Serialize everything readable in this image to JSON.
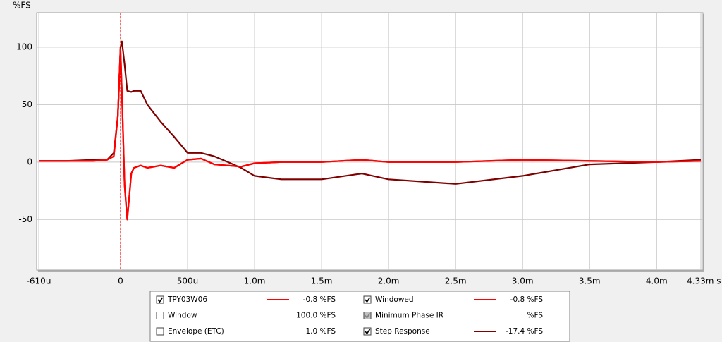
{
  "chart_data": {
    "type": "line",
    "y_axis_label": "%FS",
    "x": [
      -0.61,
      -0.4,
      -0.2,
      -0.1,
      -0.05,
      -0.02,
      0,
      0.01,
      0.03,
      0.05,
      0.08,
      0.1,
      0.15,
      0.2,
      0.3,
      0.4,
      0.5,
      0.6,
      0.7,
      0.8,
      0.9,
      1.0,
      1.2,
      1.5,
      1.8,
      2.0,
      2.5,
      3.0,
      3.5,
      4.0,
      4.33
    ],
    "series": [
      {
        "name": "TPY03W06",
        "color": "#ff0000",
        "checked": true,
        "readout": "-0.8 %FS",
        "values": [
          1,
          1,
          1,
          2,
          5,
          40,
          98,
          60,
          -20,
          -50,
          -10,
          -5,
          -3,
          -5,
          -3,
          -5,
          2,
          3,
          -2,
          -3,
          -4,
          -1,
          0,
          0,
          2,
          0,
          0,
          2,
          1,
          0,
          1
        ]
      },
      {
        "name": "Windowed",
        "color": "#ff0000",
        "checked": true,
        "readout": "-0.8 %FS",
        "values": [
          1,
          1,
          1,
          2,
          5,
          40,
          98,
          60,
          -20,
          -50,
          -10,
          -5,
          -3,
          -5,
          -3,
          -5,
          2,
          3,
          -2,
          -3,
          -4,
          -1,
          0,
          0,
          2,
          0,
          0,
          2,
          1,
          0,
          1
        ]
      },
      {
        "name": "Step Response",
        "color": "#800000",
        "checked": true,
        "readout": "-17.4 %FS",
        "values": [
          1,
          1,
          2,
          2,
          8,
          40,
          100,
          105,
          85,
          62,
          61,
          62,
          62,
          50,
          35,
          22,
          8,
          8,
          5,
          0,
          -5,
          -12,
          -15,
          -15,
          -10,
          -15,
          -19,
          -12,
          -2,
          0,
          2
        ]
      }
    ],
    "legend_extra": [
      {
        "name": "Window",
        "color": "#0000cc",
        "checked": false,
        "readout": "100.0 %FS"
      },
      {
        "name": "Envelope (ETC)",
        "color": "#800000",
        "checked": false,
        "readout": "1.0 %FS"
      },
      {
        "name": "Minimum Phase IR",
        "color": "#808080",
        "checked": true,
        "disabled": true,
        "readout": "%FS"
      }
    ],
    "cursor_x": 0,
    "cursor_color": "#ff0000",
    "xlim": [
      -0.61,
      4.33
    ],
    "xticks": [
      {
        "value": -0.61,
        "label": "-610u"
      },
      0,
      {
        "value": 0.5,
        "label": "500u"
      },
      {
        "value": 1.0,
        "label": "1.0m"
      },
      {
        "value": 1.5,
        "label": "1.5m"
      },
      {
        "value": 2.0,
        "label": "2.0m"
      },
      {
        "value": 2.5,
        "label": "2.5m"
      },
      {
        "value": 3.0,
        "label": "3.0m"
      },
      {
        "value": 3.5,
        "label": "3.5m"
      },
      {
        "value": 4.0,
        "label": "4.0m"
      },
      {
        "value": 4.33,
        "label": "4.33m s"
      }
    ],
    "ylim": [
      -94,
      130
    ],
    "yticks": [
      100,
      50,
      0,
      -50
    ],
    "grid": true
  }
}
